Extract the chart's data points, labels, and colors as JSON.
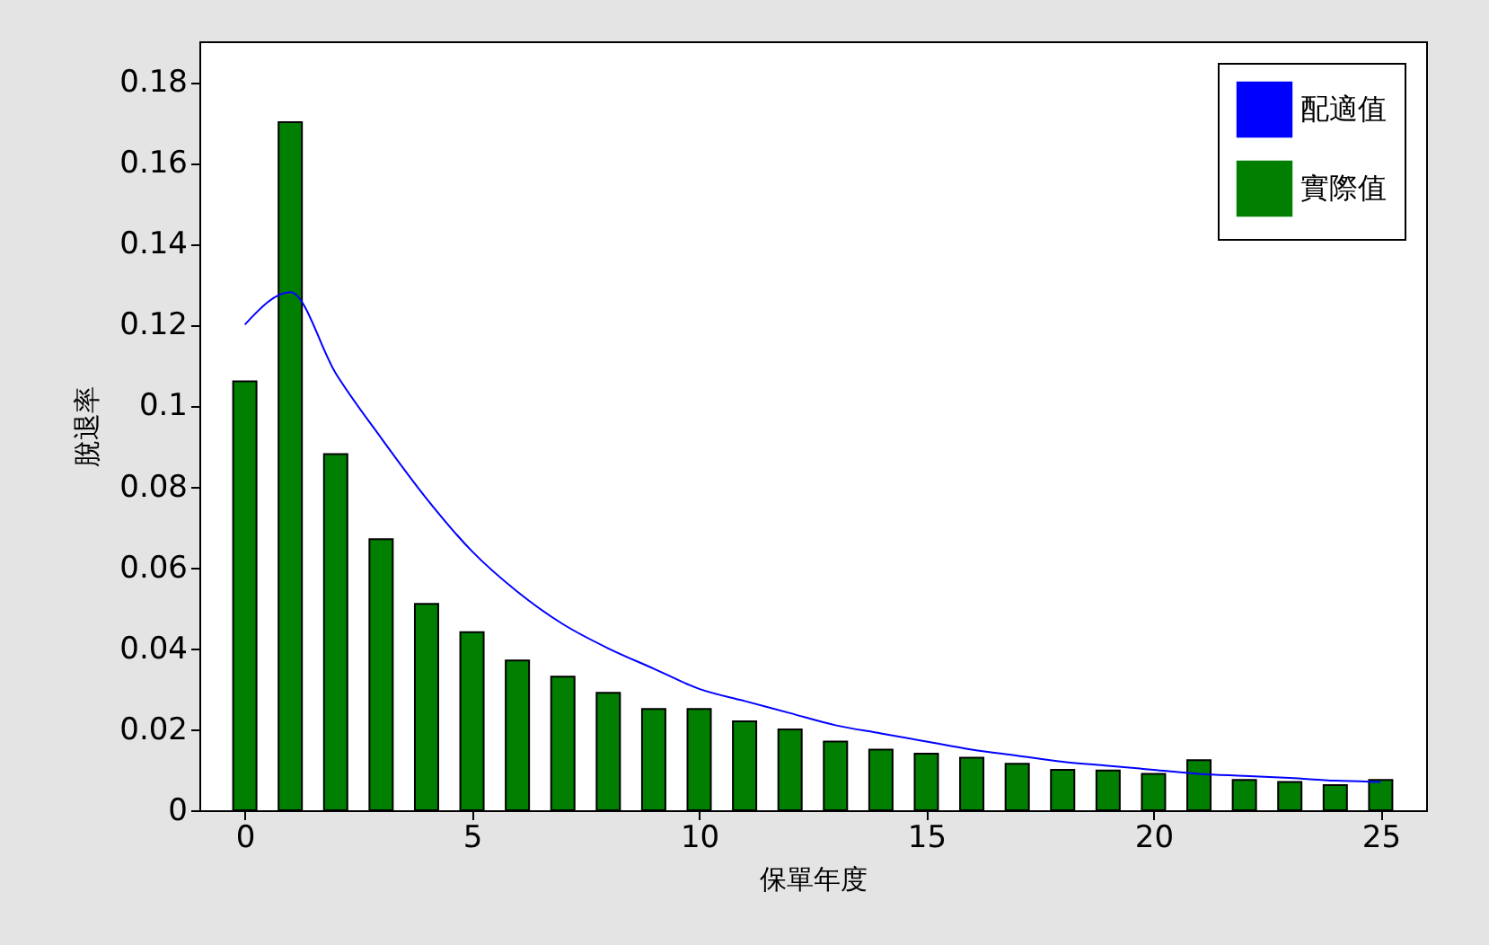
{
  "chart_data": {
    "type": "bar",
    "xlabel": "保單年度",
    "ylabel": "脫退率",
    "x": [
      0,
      1,
      2,
      3,
      4,
      5,
      6,
      7,
      8,
      9,
      10,
      11,
      12,
      13,
      14,
      15,
      16,
      17,
      18,
      19,
      20,
      21,
      22,
      23,
      24,
      25
    ],
    "series": [
      {
        "name": "配適值",
        "type": "line",
        "color": "#0000ff",
        "values": [
          0.12,
          0.128,
          0.108,
          0.092,
          0.077,
          0.064,
          0.054,
          0.046,
          0.04,
          0.035,
          0.03,
          0.027,
          0.024,
          0.021,
          0.019,
          0.017,
          0.015,
          0.0135,
          0.012,
          0.011,
          0.01,
          0.009,
          0.0085,
          0.008,
          0.0073,
          0.007
        ]
      },
      {
        "name": "實際值",
        "color": "#007f00",
        "values": [
          0.106,
          0.17,
          0.088,
          0.067,
          0.051,
          0.044,
          0.037,
          0.033,
          0.029,
          0.025,
          0.025,
          0.022,
          0.02,
          0.017,
          0.015,
          0.014,
          0.013,
          0.0115,
          0.01,
          0.0098,
          0.009,
          0.0124,
          0.0075,
          0.007,
          0.0062,
          0.0075
        ]
      }
    ],
    "xlim": [
      -1,
      26
    ],
    "xticks": [
      0,
      5,
      10,
      15,
      20,
      25
    ],
    "ylim": [
      0,
      0.19
    ],
    "yticks": [
      0,
      0.02,
      0.04,
      0.06,
      0.08,
      0.1,
      0.12,
      0.14,
      0.16,
      0.18
    ],
    "grid": false,
    "legend": "top right"
  }
}
